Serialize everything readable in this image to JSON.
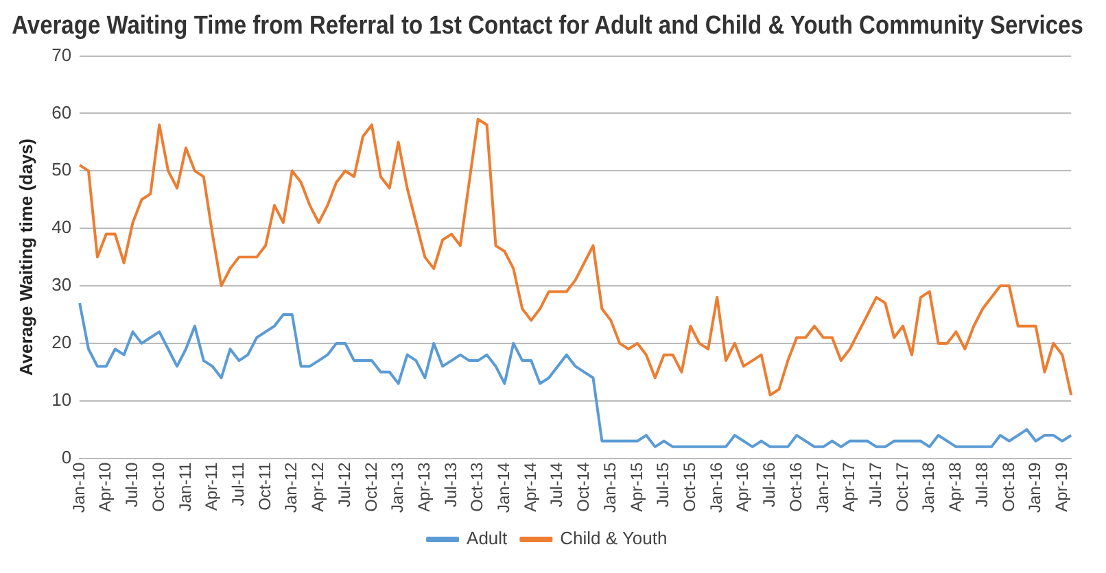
{
  "chart_data": {
    "type": "line",
    "title": "Average Waiting Time from Referral to 1st Contact for Adult and Child & Youth Community Services",
    "ylabel": "Average Waiting time (days)",
    "categories": [
      "Jan-10",
      null,
      null,
      "Apr-10",
      null,
      null,
      "Jul-10",
      null,
      null,
      "Oct-10",
      null,
      null,
      "Jan-11",
      null,
      null,
      "Apr-11",
      null,
      null,
      "Jul-11",
      null,
      null,
      "Oct-11",
      null,
      null,
      "Jan-12",
      null,
      null,
      "Apr-12",
      null,
      null,
      "Jul-12",
      null,
      null,
      "Oct-12",
      null,
      null,
      "Jan-13",
      null,
      null,
      "Apr-13",
      null,
      null,
      "Jul-13",
      null,
      null,
      "Oct-13",
      null,
      null,
      "Jan-14",
      null,
      null,
      "Apr-14",
      null,
      null,
      "Jul-14",
      null,
      null,
      "Oct-14",
      null,
      null,
      "Jan-15",
      null,
      null,
      "Apr-15",
      null,
      null,
      "Jul-15",
      null,
      null,
      "Oct-15",
      null,
      null,
      "Jan-16",
      null,
      null,
      "Apr-16",
      null,
      null,
      "Jul-16",
      null,
      null,
      "Oct-16",
      null,
      null,
      "Jan-17",
      null,
      null,
      "Apr-17",
      null,
      null,
      "Jul-17",
      null,
      null,
      "Oct-17",
      null,
      null,
      "Jan-18",
      null,
      null,
      "Apr-18",
      null,
      null,
      "Jul-18",
      null,
      null,
      "Oct-18",
      null,
      null,
      "Jan-19",
      null,
      null,
      "Apr-19",
      null
    ],
    "series": [
      {
        "name": "Adult",
        "color": "#5b9bd5",
        "values": [
          27,
          19,
          16,
          16,
          19,
          18,
          22,
          20,
          21,
          22,
          19,
          16,
          19,
          23,
          17,
          16,
          14,
          19,
          17,
          18,
          21,
          22,
          23,
          25,
          25,
          16,
          16,
          17,
          18,
          20,
          20,
          17,
          17,
          17,
          15,
          15,
          13,
          18,
          17,
          14,
          20,
          16,
          17,
          18,
          17,
          17,
          18,
          16,
          13,
          20,
          17,
          17,
          13,
          14,
          16,
          18,
          16,
          15,
          14,
          3,
          3,
          3,
          3,
          3,
          4,
          2,
          3,
          2,
          2,
          2,
          2,
          2,
          2,
          2,
          4,
          3,
          2,
          3,
          2,
          2,
          2,
          4,
          3,
          2,
          2,
          3,
          2,
          3,
          3,
          3,
          2,
          2,
          3,
          3,
          3,
          3,
          2,
          4,
          3,
          2,
          2,
          2,
          2,
          2,
          4,
          3,
          4,
          5,
          3,
          4,
          4,
          3,
          4
        ]
      },
      {
        "name": "Child & Youth",
        "color": "#ed7d31",
        "values": [
          51,
          50,
          35,
          39,
          39,
          34,
          41,
          45,
          46,
          58,
          50,
          47,
          54,
          50,
          49,
          39,
          30,
          33,
          35,
          35,
          35,
          37,
          44,
          41,
          50,
          48,
          44,
          41,
          44,
          48,
          50,
          49,
          56,
          58,
          49,
          47,
          55,
          47,
          41,
          35,
          33,
          38,
          39,
          37,
          48,
          59,
          58,
          37,
          36,
          33,
          26,
          24,
          26,
          29,
          29,
          29,
          31,
          34,
          37,
          26,
          24,
          20,
          19,
          20,
          18,
          14,
          18,
          18,
          15,
          23,
          20,
          19,
          28,
          17,
          20,
          16,
          17,
          18,
          11,
          12,
          17,
          21,
          21,
          23,
          21,
          21,
          17,
          19,
          22,
          25,
          28,
          27,
          21,
          23,
          18,
          28,
          29,
          20,
          20,
          22,
          19,
          23,
          26,
          28,
          30,
          30,
          23,
          23,
          23,
          15,
          20,
          18,
          11
        ]
      }
    ],
    "ylim": [
      0,
      70
    ],
    "yticks": [
      0,
      10,
      20,
      30,
      40,
      50,
      60,
      70
    ],
    "grid": "y",
    "legend": "bottom",
    "marker": "none",
    "line_style": "solid"
  }
}
